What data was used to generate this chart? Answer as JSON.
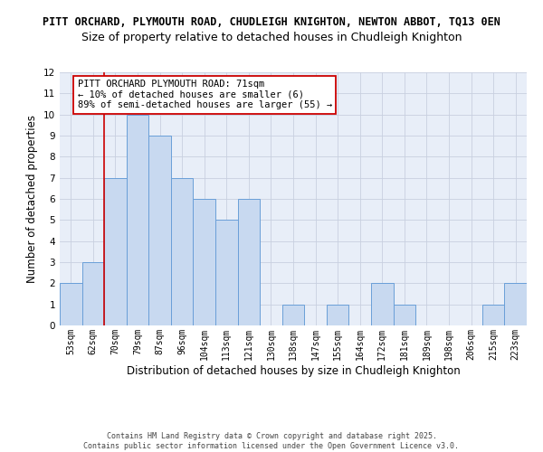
{
  "title_line1": "PITT ORCHARD, PLYMOUTH ROAD, CHUDLEIGH KNIGHTON, NEWTON ABBOT, TQ13 0EN",
  "title_line2": "Size of property relative to detached houses in Chudleigh Knighton",
  "xlabel": "Distribution of detached houses by size in Chudleigh Knighton",
  "ylabel": "Number of detached properties",
  "categories": [
    "53sqm",
    "62sqm",
    "70sqm",
    "79sqm",
    "87sqm",
    "96sqm",
    "104sqm",
    "113sqm",
    "121sqm",
    "130sqm",
    "138sqm",
    "147sqm",
    "155sqm",
    "164sqm",
    "172sqm",
    "181sqm",
    "189sqm",
    "198sqm",
    "206sqm",
    "215sqm",
    "223sqm"
  ],
  "values": [
    2,
    3,
    7,
    10,
    9,
    7,
    6,
    5,
    6,
    0,
    1,
    0,
    1,
    0,
    2,
    1,
    0,
    0,
    0,
    1,
    2
  ],
  "bar_color": "#c8d9f0",
  "bar_edge_color": "#6a9fd8",
  "bar_linewidth": 0.7,
  "red_line_x": 1.5,
  "red_line_color": "#cc0000",
  "ylim": [
    0,
    12
  ],
  "yticks": [
    0,
    1,
    2,
    3,
    4,
    5,
    6,
    7,
    8,
    9,
    10,
    11,
    12
  ],
  "annotation_text": "PITT ORCHARD PLYMOUTH ROAD: 71sqm\n← 10% of detached houses are smaller (6)\n89% of semi-detached houses are larger (55) →",
  "footer_text": "Contains HM Land Registry data © Crown copyright and database right 2025.\nContains public sector information licensed under the Open Government Licence v3.0.",
  "grid_color": "#c8d0e0",
  "background_color": "#e8eef8",
  "title1_fontsize": 8.5,
  "title2_fontsize": 9.0,
  "tick_fontsize": 7.0,
  "ylabel_fontsize": 8.5,
  "xlabel_fontsize": 8.5,
  "annotation_fontsize": 7.5,
  "footer_fontsize": 6.0
}
